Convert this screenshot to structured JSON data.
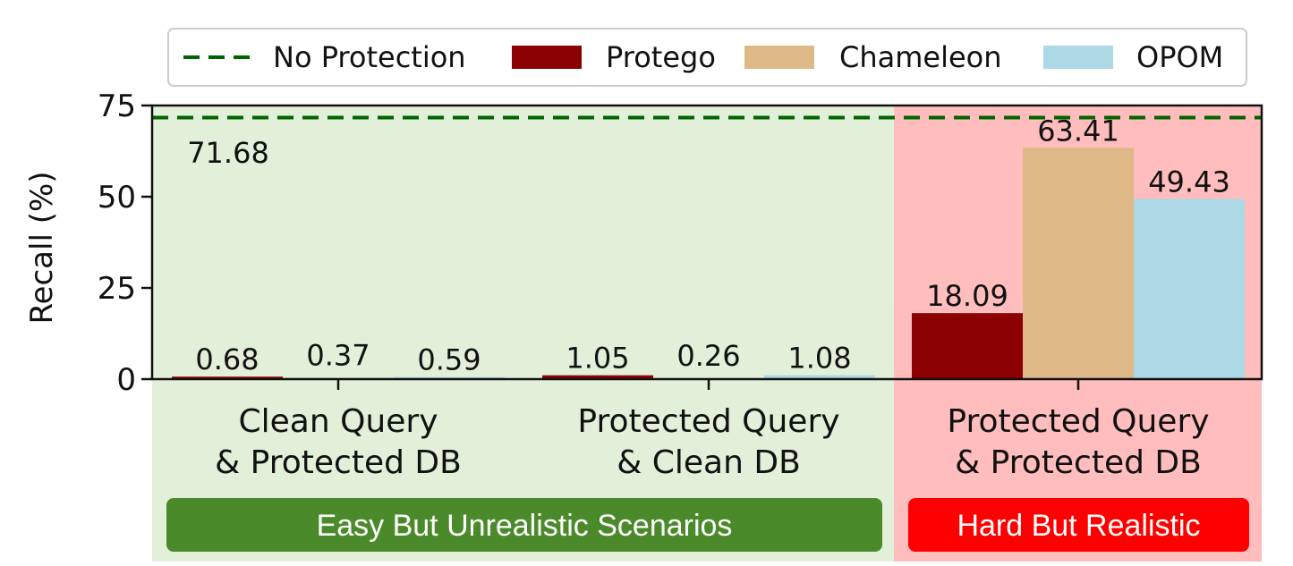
{
  "chart_data": {
    "type": "bar",
    "ylabel": "Recall (%)",
    "ylim": [
      0,
      75
    ],
    "yticks": [
      0,
      25,
      50,
      75
    ],
    "categories": [
      [
        "Clean Query",
        "& Protected DB"
      ],
      [
        "Protected Query",
        "& Clean DB"
      ],
      [
        "Protected Query",
        "& Protected DB"
      ]
    ],
    "series": [
      {
        "name": "Protego",
        "color": "#8b0000",
        "values": [
          0.68,
          1.05,
          18.09
        ],
        "labels": [
          "0.68",
          "1.05",
          "18.09"
        ]
      },
      {
        "name": "Chameleon",
        "color": "#deb887",
        "values": [
          0.37,
          0.26,
          63.41
        ],
        "labels": [
          "0.37",
          "0.26",
          "63.41"
        ]
      },
      {
        "name": "OPOM",
        "color": "#add8e6",
        "values": [
          0.59,
          1.08,
          49.43
        ],
        "labels": [
          "0.59",
          "1.08",
          "49.43"
        ]
      }
    ],
    "reference_line": {
      "name": "No Protection",
      "value": 71.68,
      "label": "71.68",
      "color": "#006400",
      "style": "dashed"
    },
    "legend_position": "top",
    "regions": [
      {
        "label": "Easy But Unrealistic Scenarios",
        "categories": [
          0,
          1
        ],
        "background": "#e2f0d9",
        "badge_color": "#4a8a2a"
      },
      {
        "label": "Hard But Realistic",
        "categories": [
          2
        ],
        "background": "#ffbdbd",
        "badge_color": "#ff0000"
      }
    ],
    "grid": false
  }
}
